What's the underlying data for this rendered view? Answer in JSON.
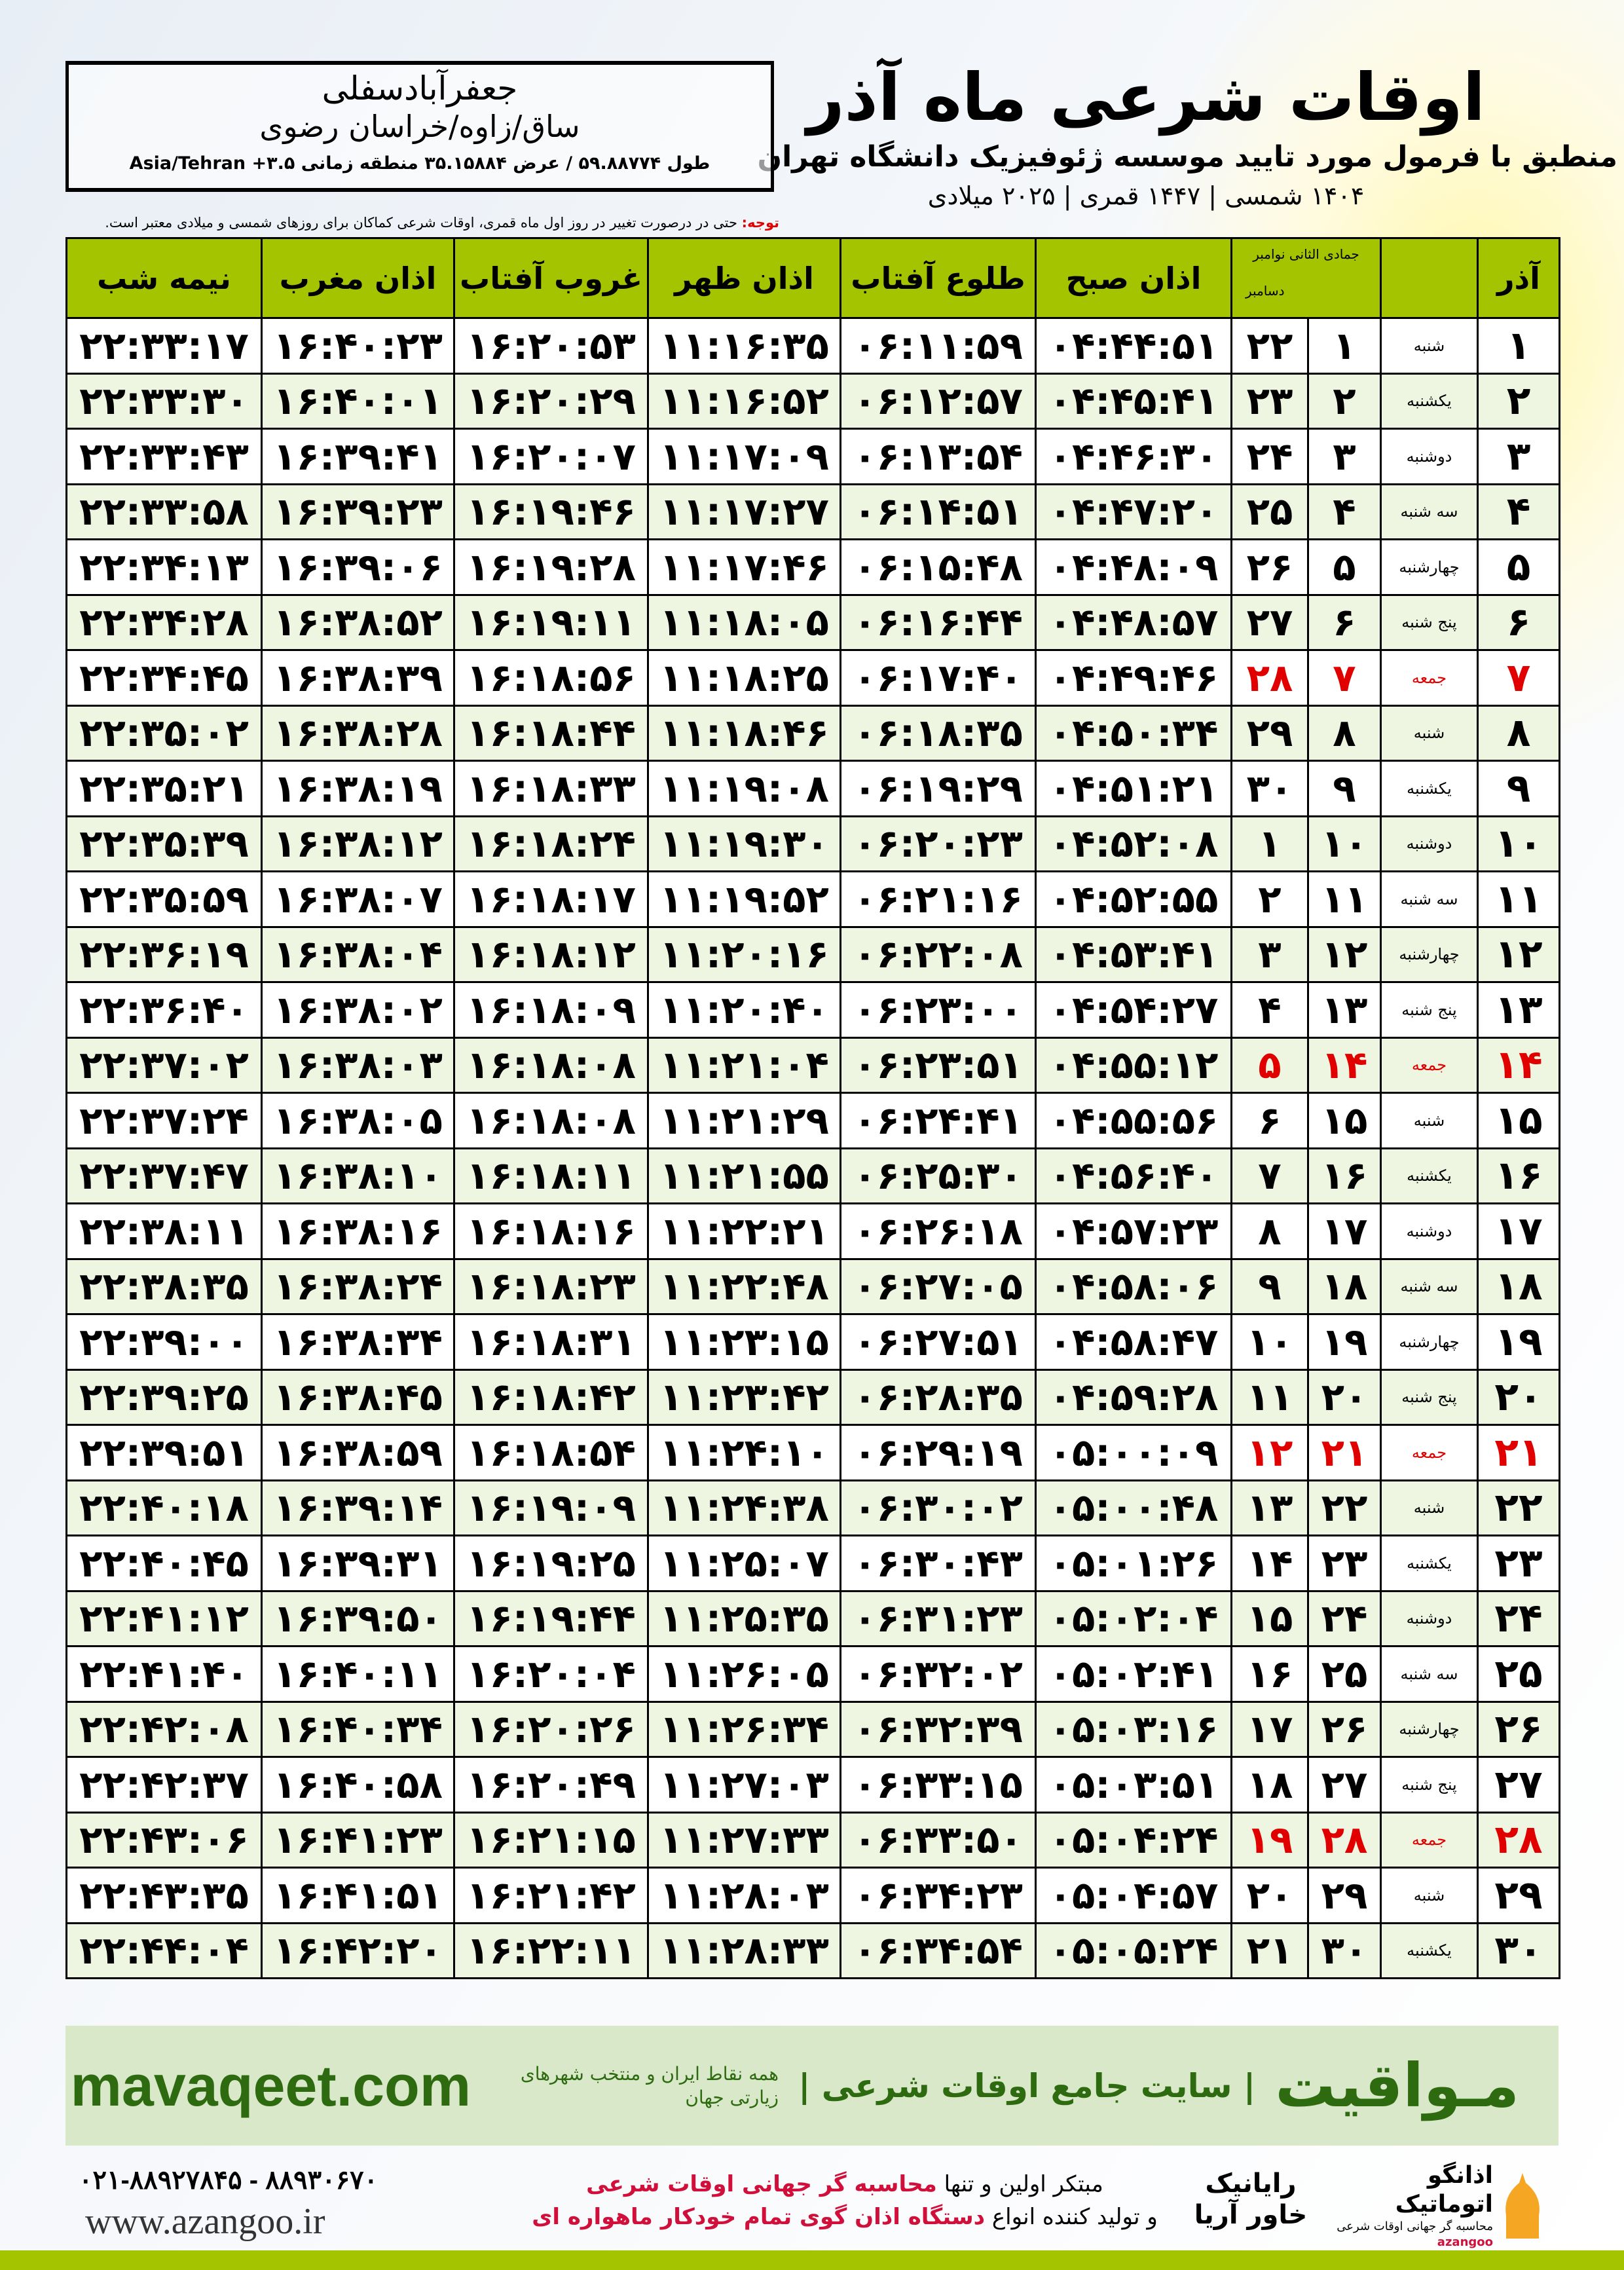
{
  "header": {
    "title": "اوقات شرعی ماه آذر",
    "subtitle": "منطبق با فرمول مورد تایید موسسه ژئوفیزیک دانشگاه تهران",
    "dateline": "۱۴۰۴ شمسی | ۱۴۴۷ قمری | ۲۰۲۵ میلادی"
  },
  "location": {
    "name": "جعفرآبادسفلی",
    "region": "ساق/زاوه/خراسان رضوی",
    "coords": "طول ۵۹.۸۸۷۷۴ / عرض ۳۵.۱۵۸۸۴ منطقه زمانی ۳.۵+ Asia/Tehran"
  },
  "note": {
    "label": "توجه:",
    "text": " حتی در درصورت تغییر در روز اول ماه قمری، اوقات شرعی کماکان برای روزهای شمسی و میلادی معتبر است."
  },
  "colors": {
    "header_green": "#a4c400",
    "friday_red": "#e00000",
    "brand_green": "#2e6b10"
  },
  "table": {
    "headers": {
      "azar": "آذر",
      "jumada": "جمادی الثانی",
      "november": "نوامبر",
      "december": "دسامبر",
      "fajr": "اذان صبح",
      "sunrise": "طلوع آفتاب",
      "dhuhr": "اذان ظهر",
      "sunset": "غروب آفتاب",
      "maghrib": "اذان مغرب",
      "midnight": "نیمه شب"
    },
    "rows": [
      [
        "۱",
        "شنبه",
        "۱",
        "۲۲",
        "۰۴:۴۴:۵۱",
        "۰۶:۱۱:۵۹",
        "۱۱:۱۶:۳۵",
        "۱۶:۲۰:۵۳",
        "۱۶:۴۰:۲۳",
        "۲۲:۳۳:۱۷"
      ],
      [
        "۲",
        "یکشنبه",
        "۲",
        "۲۳",
        "۰۴:۴۵:۴۱",
        "۰۶:۱۲:۵۷",
        "۱۱:۱۶:۵۲",
        "۱۶:۲۰:۲۹",
        "۱۶:۴۰:۰۱",
        "۲۲:۳۳:۳۰"
      ],
      [
        "۳",
        "دوشنبه",
        "۳",
        "۲۴",
        "۰۴:۴۶:۳۰",
        "۰۶:۱۳:۵۴",
        "۱۱:۱۷:۰۹",
        "۱۶:۲۰:۰۷",
        "۱۶:۳۹:۴۱",
        "۲۲:۳۳:۴۳"
      ],
      [
        "۴",
        "سه شنبه",
        "۴",
        "۲۵",
        "۰۴:۴۷:۲۰",
        "۰۶:۱۴:۵۱",
        "۱۱:۱۷:۲۷",
        "۱۶:۱۹:۴۶",
        "۱۶:۳۹:۲۳",
        "۲۲:۳۳:۵۸"
      ],
      [
        "۵",
        "چهارشنبه",
        "۵",
        "۲۶",
        "۰۴:۴۸:۰۹",
        "۰۶:۱۵:۴۸",
        "۱۱:۱۷:۴۶",
        "۱۶:۱۹:۲۸",
        "۱۶:۳۹:۰۶",
        "۲۲:۳۴:۱۳"
      ],
      [
        "۶",
        "پنج شنبه",
        "۶",
        "۲۷",
        "۰۴:۴۸:۵۷",
        "۰۶:۱۶:۴۴",
        "۱۱:۱۸:۰۵",
        "۱۶:۱۹:۱۱",
        "۱۶:۳۸:۵۲",
        "۲۲:۳۴:۲۸"
      ],
      [
        "۷",
        "جمعه",
        "۷",
        "۲۸",
        "۰۴:۴۹:۴۶",
        "۰۶:۱۷:۴۰",
        "۱۱:۱۸:۲۵",
        "۱۶:۱۸:۵۶",
        "۱۶:۳۸:۳۹",
        "۲۲:۳۴:۴۵"
      ],
      [
        "۸",
        "شنبه",
        "۸",
        "۲۹",
        "۰۴:۵۰:۳۴",
        "۰۶:۱۸:۳۵",
        "۱۱:۱۸:۴۶",
        "۱۶:۱۸:۴۴",
        "۱۶:۳۸:۲۸",
        "۲۲:۳۵:۰۲"
      ],
      [
        "۹",
        "یکشنبه",
        "۹",
        "۳۰",
        "۰۴:۵۱:۲۱",
        "۰۶:۱۹:۲۹",
        "۱۱:۱۹:۰۸",
        "۱۶:۱۸:۳۳",
        "۱۶:۳۸:۱۹",
        "۲۲:۳۵:۲۱"
      ],
      [
        "۱۰",
        "دوشنبه",
        "۱۰",
        "۱",
        "۰۴:۵۲:۰۸",
        "۰۶:۲۰:۲۳",
        "۱۱:۱۹:۳۰",
        "۱۶:۱۸:۲۴",
        "۱۶:۳۸:۱۲",
        "۲۲:۳۵:۳۹"
      ],
      [
        "۱۱",
        "سه شنبه",
        "۱۱",
        "۲",
        "۰۴:۵۲:۵۵",
        "۰۶:۲۱:۱۶",
        "۱۱:۱۹:۵۲",
        "۱۶:۱۸:۱۷",
        "۱۶:۳۸:۰۷",
        "۲۲:۳۵:۵۹"
      ],
      [
        "۱۲",
        "چهارشنبه",
        "۱۲",
        "۳",
        "۰۴:۵۳:۴۱",
        "۰۶:۲۲:۰۸",
        "۱۱:۲۰:۱۶",
        "۱۶:۱۸:۱۲",
        "۱۶:۳۸:۰۴",
        "۲۲:۳۶:۱۹"
      ],
      [
        "۱۳",
        "پنج شنبه",
        "۱۳",
        "۴",
        "۰۴:۵۴:۲۷",
        "۰۶:۲۳:۰۰",
        "۱۱:۲۰:۴۰",
        "۱۶:۱۸:۰۹",
        "۱۶:۳۸:۰۲",
        "۲۲:۳۶:۴۰"
      ],
      [
        "۱۴",
        "جمعه",
        "۱۴",
        "۵",
        "۰۴:۵۵:۱۲",
        "۰۶:۲۳:۵۱",
        "۱۱:۲۱:۰۴",
        "۱۶:۱۸:۰۸",
        "۱۶:۳۸:۰۳",
        "۲۲:۳۷:۰۲"
      ],
      [
        "۱۵",
        "شنبه",
        "۱۵",
        "۶",
        "۰۴:۵۵:۵۶",
        "۰۶:۲۴:۴۱",
        "۱۱:۲۱:۲۹",
        "۱۶:۱۸:۰۸",
        "۱۶:۳۸:۰۵",
        "۲۲:۳۷:۲۴"
      ],
      [
        "۱۶",
        "یکشنبه",
        "۱۶",
        "۷",
        "۰۴:۵۶:۴۰",
        "۰۶:۲۵:۳۰",
        "۱۱:۲۱:۵۵",
        "۱۶:۱۸:۱۱",
        "۱۶:۳۸:۱۰",
        "۲۲:۳۷:۴۷"
      ],
      [
        "۱۷",
        "دوشنبه",
        "۱۷",
        "۸",
        "۰۴:۵۷:۲۳",
        "۰۶:۲۶:۱۸",
        "۱۱:۲۲:۲۱",
        "۱۶:۱۸:۱۶",
        "۱۶:۳۸:۱۶",
        "۲۲:۳۸:۱۱"
      ],
      [
        "۱۸",
        "سه شنبه",
        "۱۸",
        "۹",
        "۰۴:۵۸:۰۶",
        "۰۶:۲۷:۰۵",
        "۱۱:۲۲:۴۸",
        "۱۶:۱۸:۲۳",
        "۱۶:۳۸:۲۴",
        "۲۲:۳۸:۳۵"
      ],
      [
        "۱۹",
        "چهارشنبه",
        "۱۹",
        "۱۰",
        "۰۴:۵۸:۴۷",
        "۰۶:۲۷:۵۱",
        "۱۱:۲۳:۱۵",
        "۱۶:۱۸:۳۱",
        "۱۶:۳۸:۳۴",
        "۲۲:۳۹:۰۰"
      ],
      [
        "۲۰",
        "پنج شنبه",
        "۲۰",
        "۱۱",
        "۰۴:۵۹:۲۸",
        "۰۶:۲۸:۳۵",
        "۱۱:۲۳:۴۲",
        "۱۶:۱۸:۴۲",
        "۱۶:۳۸:۴۵",
        "۲۲:۳۹:۲۵"
      ],
      [
        "۲۱",
        "جمعه",
        "۲۱",
        "۱۲",
        "۰۵:۰۰:۰۹",
        "۰۶:۲۹:۱۹",
        "۱۱:۲۴:۱۰",
        "۱۶:۱۸:۵۴",
        "۱۶:۳۸:۵۹",
        "۲۲:۳۹:۵۱"
      ],
      [
        "۲۲",
        "شنبه",
        "۲۲",
        "۱۳",
        "۰۵:۰۰:۴۸",
        "۰۶:۳۰:۰۲",
        "۱۱:۲۴:۳۸",
        "۱۶:۱۹:۰۹",
        "۱۶:۳۹:۱۴",
        "۲۲:۴۰:۱۸"
      ],
      [
        "۲۳",
        "یکشنبه",
        "۲۳",
        "۱۴",
        "۰۵:۰۱:۲۶",
        "۰۶:۳۰:۴۳",
        "۱۱:۲۵:۰۷",
        "۱۶:۱۹:۲۵",
        "۱۶:۳۹:۳۱",
        "۲۲:۴۰:۴۵"
      ],
      [
        "۲۴",
        "دوشنبه",
        "۲۴",
        "۱۵",
        "۰۵:۰۲:۰۴",
        "۰۶:۳۱:۲۳",
        "۱۱:۲۵:۳۵",
        "۱۶:۱۹:۴۴",
        "۱۶:۳۹:۵۰",
        "۲۲:۴۱:۱۲"
      ],
      [
        "۲۵",
        "سه شنبه",
        "۲۵",
        "۱۶",
        "۰۵:۰۲:۴۱",
        "۰۶:۳۲:۰۲",
        "۱۱:۲۶:۰۵",
        "۱۶:۲۰:۰۴",
        "۱۶:۴۰:۱۱",
        "۲۲:۴۱:۴۰"
      ],
      [
        "۲۶",
        "چهارشنبه",
        "۲۶",
        "۱۷",
        "۰۵:۰۳:۱۶",
        "۰۶:۳۲:۳۹",
        "۱۱:۲۶:۳۴",
        "۱۶:۲۰:۲۶",
        "۱۶:۴۰:۳۴",
        "۲۲:۴۲:۰۸"
      ],
      [
        "۲۷",
        "پنج شنبه",
        "۲۷",
        "۱۸",
        "۰۵:۰۳:۵۱",
        "۰۶:۳۳:۱۵",
        "۱۱:۲۷:۰۳",
        "۱۶:۲۰:۴۹",
        "۱۶:۴۰:۵۸",
        "۲۲:۴۲:۳۷"
      ],
      [
        "۲۸",
        "جمعه",
        "۲۸",
        "۱۹",
        "۰۵:۰۴:۲۴",
        "۰۶:۳۳:۵۰",
        "۱۱:۲۷:۳۳",
        "۱۶:۲۱:۱۵",
        "۱۶:۴۱:۲۳",
        "۲۲:۴۳:۰۶"
      ],
      [
        "۲۹",
        "شنبه",
        "۲۹",
        "۲۰",
        "۰۵:۰۴:۵۷",
        "۰۶:۳۴:۲۳",
        "۱۱:۲۸:۰۳",
        "۱۶:۲۱:۴۲",
        "۱۶:۴۱:۵۱",
        "۲۲:۴۳:۳۵"
      ],
      [
        "۳۰",
        "یکشنبه",
        "۳۰",
        "۲۱",
        "۰۵:۰۵:۲۴",
        "۰۶:۳۴:۵۴",
        "۱۱:۲۸:۳۳",
        "۱۶:۲۲:۱۱",
        "۱۶:۴۲:۲۰",
        "۲۲:۴۴:۰۴"
      ]
    ]
  },
  "footer": {
    "brand": "مـواقیت",
    "tagline": "| سایت جامع اوقات شرعی |",
    "tagline2": "همه نقاط ایران و منتخب شهرهای زیارتی جهان",
    "site": "mavaqeet.com",
    "promo1a": "مبتکر اولین و تنها ",
    "promo1b": "محاسبه گر جهانی اوقات شرعی",
    "promo2a": "و تولید کننده انواع ",
    "promo2b": "دستگاه اذان گوی تمام خودکار ماهواره ای",
    "phones": "۰۲۱-۸۸۹۲۷۸۴۵ - ۸۸۹۳۰۶۷۰",
    "web": "www.azangoo.ir",
    "logo_rayanik": "رایانیک خاور آریا",
    "logo_azangoo": "اذانگو اتوماتیک",
    "logo_azangoo_sub": "محاسبه گر جهانی اوقات شرعی",
    "logo_azangoo_latin": "azangoo"
  }
}
